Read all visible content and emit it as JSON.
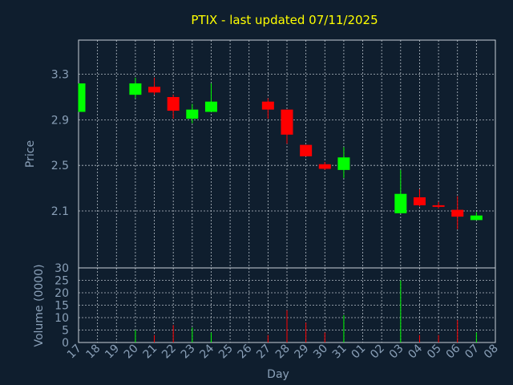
{
  "chart_data": {
    "type": "candlestick",
    "title": "PTIX - last updated 07/11/2025",
    "xlabel": "Day",
    "price_ylabel": "Price",
    "volume_ylabel": "Volume (0000)",
    "price_ylim": [
      1.6,
      3.6
    ],
    "price_yticks": [
      "3.3",
      "2.9",
      "2.5",
      "2.1"
    ],
    "price_ytick_values": [
      3.3,
      2.9,
      2.5,
      2.1
    ],
    "volume_ylim": [
      0,
      30
    ],
    "volume_yticks": [
      "30",
      "25",
      "20",
      "15",
      "10",
      "5",
      "0"
    ],
    "volume_ytick_values": [
      30,
      25,
      20,
      15,
      10,
      5,
      0
    ],
    "grid": true,
    "up_color": "#00ff00",
    "down_color": "#ff0000",
    "day_labels": [
      "17",
      "18",
      "19",
      "20",
      "21",
      "22",
      "23",
      "24",
      "25",
      "26",
      "27",
      "28",
      "29",
      "30",
      "31",
      "01",
      "02",
      "03",
      "04",
      "05",
      "06",
      "07",
      "08"
    ],
    "candles": [
      {
        "day": "17",
        "open": 2.97,
        "close": 3.22,
        "high": 3.22,
        "low": 2.97,
        "volume": 0
      },
      {
        "day": "20",
        "open": 3.12,
        "close": 3.22,
        "high": 3.27,
        "low": 3.09,
        "volume": 5
      },
      {
        "day": "21",
        "open": 3.19,
        "close": 3.14,
        "high": 3.27,
        "low": 3.12,
        "volume": 3
      },
      {
        "day": "22",
        "open": 3.1,
        "close": 2.98,
        "high": 3.12,
        "low": 2.91,
        "volume": 7
      },
      {
        "day": "23",
        "open": 2.91,
        "close": 2.99,
        "high": 3.04,
        "low": 2.87,
        "volume": 6
      },
      {
        "day": "24",
        "open": 2.97,
        "close": 3.06,
        "high": 3.22,
        "low": 2.97,
        "volume": 4
      },
      {
        "day": "27",
        "open": 3.06,
        "close": 2.99,
        "high": 3.09,
        "low": 2.91,
        "volume": 3
      },
      {
        "day": "28",
        "open": 2.99,
        "close": 2.77,
        "high": 2.99,
        "low": 2.69,
        "volume": 13
      },
      {
        "day": "29",
        "open": 2.68,
        "close": 2.58,
        "high": 2.68,
        "low": 2.58,
        "volume": 8
      },
      {
        "day": "30",
        "open": 2.51,
        "close": 2.47,
        "high": 2.53,
        "low": 2.46,
        "volume": 4
      },
      {
        "day": "31",
        "open": 2.46,
        "close": 2.57,
        "high": 2.66,
        "low": 2.39,
        "volume": 11
      },
      {
        "day": "03",
        "open": 2.08,
        "close": 2.25,
        "high": 2.46,
        "low": 2.08,
        "volume": 25
      },
      {
        "day": "04",
        "open": 2.22,
        "close": 2.15,
        "high": 2.29,
        "low": 2.14,
        "volume": 3
      },
      {
        "day": "05",
        "open": 2.15,
        "close": 2.14,
        "high": 2.18,
        "low": 2.12,
        "volume": 3
      },
      {
        "day": "06",
        "open": 2.11,
        "close": 2.05,
        "high": 2.23,
        "low": 1.94,
        "volume": 9
      },
      {
        "day": "07",
        "open": 2.02,
        "close": 2.06,
        "high": 2.09,
        "low": 2.02,
        "volume": 4
      }
    ]
  }
}
